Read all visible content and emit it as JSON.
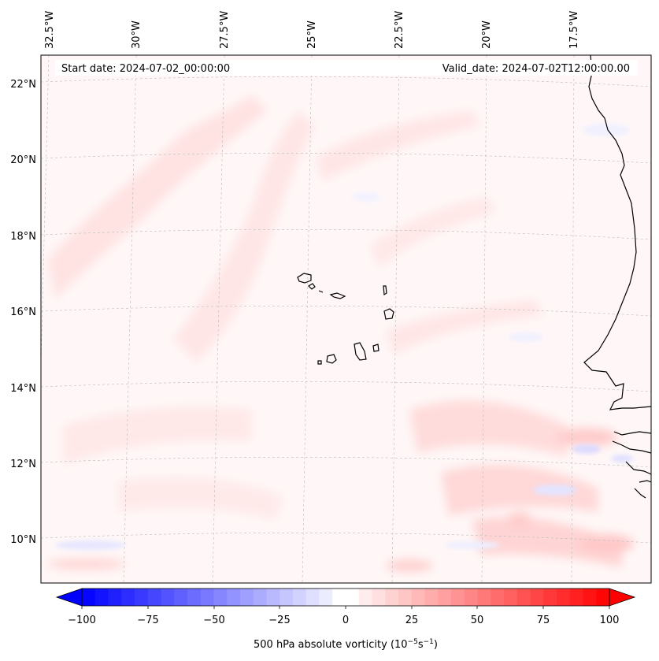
{
  "map": {
    "start_label": "Start date: 2024-07-02_00:00:00",
    "valid_label": "Valid_date: 2024-07-02T12:00:00.00",
    "lon_labels": [
      "32.5°W",
      "30°W",
      "27.5°W",
      "25°W",
      "22.5°W",
      "20°W",
      "17.5°W"
    ],
    "lat_labels": [
      "22°N",
      "20°N",
      "18°N",
      "16°N",
      "14°N",
      "12°N",
      "10°N"
    ]
  },
  "colorbar": {
    "label_text": "500 hPa absolute vorticity (10",
    "label_exp1": "−5",
    "label_mid": "s",
    "label_exp2": "−1",
    "label_close": ")",
    "ticks": [
      "−100",
      "−75",
      "−50",
      "−25",
      "0",
      "25",
      "50",
      "75",
      "100"
    ]
  },
  "colors": {
    "positive": "#ff0000",
    "negative": "#0000ff",
    "coast": "#000000",
    "background": "#fff7f7"
  }
}
